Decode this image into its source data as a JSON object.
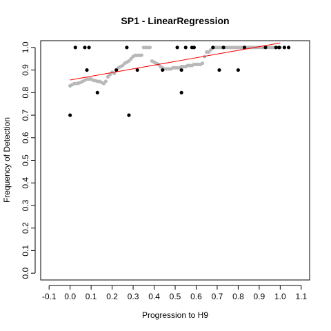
{
  "chart_data": {
    "type": "scatter",
    "title": "SP1 - LinearRegression",
    "xlabel": "Progression to H9",
    "ylabel": "Frequency of Detection",
    "xlim": [
      -0.14,
      1.14
    ],
    "ylim": [
      -0.03,
      1.03
    ],
    "x_ticks": [
      "-0.1",
      "0.0",
      "0.1",
      "0.2",
      "0.3",
      "0.4",
      "0.5",
      "0.6",
      "0.7",
      "0.8",
      "0.9",
      "1.0",
      "1.1"
    ],
    "x_tick_values": [
      -0.1,
      0.0,
      0.1,
      0.2,
      0.3,
      0.4,
      0.5,
      0.6,
      0.7,
      0.8,
      0.9,
      1.0,
      1.1
    ],
    "y_ticks": [
      "0.0",
      "0.1",
      "0.2",
      "0.3",
      "0.4",
      "0.5",
      "0.6",
      "0.7",
      "0.8",
      "0.9",
      "1.0"
    ],
    "y_tick_values": [
      0.0,
      0.1,
      0.2,
      0.3,
      0.4,
      0.5,
      0.6,
      0.7,
      0.8,
      0.9,
      1.0
    ],
    "series": [
      {
        "color": "#000000",
        "points": [
          [
            0.0,
            0.7
          ],
          [
            0.025,
            1.0
          ],
          [
            0.07,
            1.0
          ],
          [
            0.09,
            1.0
          ],
          [
            0.08,
            0.9
          ],
          [
            0.13,
            0.8
          ],
          [
            0.22,
            0.9
          ],
          [
            0.27,
            1.0
          ],
          [
            0.28,
            0.7
          ],
          [
            0.32,
            0.9
          ],
          [
            0.44,
            0.9
          ],
          [
            0.51,
            1.0
          ],
          [
            0.53,
            0.8
          ],
          [
            0.53,
            0.9
          ],
          [
            0.55,
            1.0
          ],
          [
            0.58,
            1.0
          ],
          [
            0.59,
            1.0
          ],
          [
            0.68,
            1.0
          ],
          [
            0.71,
            0.9
          ],
          [
            0.73,
            1.0
          ],
          [
            0.8,
            0.9
          ],
          [
            0.83,
            1.0
          ],
          [
            0.93,
            1.0
          ],
          [
            0.98,
            1.0
          ],
          [
            0.995,
            1.0
          ],
          [
            1.02,
            1.0
          ],
          [
            1.04,
            1.0
          ]
        ]
      },
      {
        "color": "#b8b8b8",
        "points": [
          [
            0.0,
            0.83
          ],
          [
            0.01,
            0.835
          ],
          [
            0.02,
            0.84
          ],
          [
            0.03,
            0.84
          ],
          [
            0.04,
            0.842
          ],
          [
            0.05,
            0.845
          ],
          [
            0.06,
            0.85
          ],
          [
            0.07,
            0.855
          ],
          [
            0.08,
            0.86
          ],
          [
            0.09,
            0.86
          ],
          [
            0.1,
            0.86
          ],
          [
            0.11,
            0.855
          ],
          [
            0.12,
            0.853
          ],
          [
            0.13,
            0.85
          ],
          [
            0.14,
            0.85
          ],
          [
            0.15,
            0.845
          ],
          [
            0.16,
            0.84
          ],
          [
            0.17,
            0.85
          ],
          [
            0.18,
            0.87
          ],
          [
            0.19,
            0.88
          ],
          [
            0.2,
            0.89
          ],
          [
            0.21,
            0.885
          ],
          [
            0.22,
            0.9
          ],
          [
            0.23,
            0.91
          ],
          [
            0.24,
            0.915
          ],
          [
            0.25,
            0.92
          ],
          [
            0.26,
            0.93
          ],
          [
            0.27,
            0.935
          ],
          [
            0.28,
            0.94
          ],
          [
            0.29,
            0.95
          ],
          [
            0.3,
            0.96
          ],
          [
            0.31,
            0.965
          ],
          [
            0.32,
            0.965
          ],
          [
            0.33,
            0.965
          ],
          [
            0.34,
            0.966
          ],
          [
            0.35,
            1.0
          ],
          [
            0.36,
            1.0
          ],
          [
            0.37,
            1.0
          ],
          [
            0.38,
            1.0
          ],
          [
            0.39,
            0.94
          ],
          [
            0.4,
            0.935
          ],
          [
            0.41,
            0.93
          ],
          [
            0.42,
            0.925
          ],
          [
            0.43,
            0.915
          ],
          [
            0.44,
            0.91
          ],
          [
            0.45,
            0.905
          ],
          [
            0.46,
            0.905
          ],
          [
            0.47,
            0.905
          ],
          [
            0.48,
            0.905
          ],
          [
            0.49,
            0.91
          ],
          [
            0.5,
            0.91
          ],
          [
            0.51,
            0.91
          ],
          [
            0.52,
            0.91
          ],
          [
            0.53,
            0.915
          ],
          [
            0.54,
            0.915
          ],
          [
            0.55,
            0.915
          ],
          [
            0.56,
            0.92
          ],
          [
            0.57,
            0.92
          ],
          [
            0.58,
            0.92
          ],
          [
            0.59,
            0.925
          ],
          [
            0.6,
            0.925
          ],
          [
            0.61,
            0.925
          ],
          [
            0.62,
            0.925
          ],
          [
            0.63,
            0.93
          ],
          [
            0.64,
            0.96
          ],
          [
            0.65,
            0.98
          ],
          [
            0.66,
            0.98
          ],
          [
            0.67,
            0.99
          ],
          [
            0.68,
            1.0
          ],
          [
            0.69,
            1.0
          ],
          [
            0.7,
            1.0
          ],
          [
            0.71,
            1.0
          ],
          [
            0.72,
            1.0
          ],
          [
            0.73,
            1.0
          ],
          [
            0.74,
            1.0
          ],
          [
            0.75,
            1.0
          ],
          [
            0.76,
            1.0
          ],
          [
            0.77,
            1.0
          ],
          [
            0.78,
            1.0
          ],
          [
            0.79,
            1.0
          ],
          [
            0.8,
            1.0
          ],
          [
            0.81,
            1.0
          ],
          [
            0.82,
            1.0
          ],
          [
            0.83,
            1.0
          ],
          [
            0.84,
            1.0
          ],
          [
            0.85,
            1.0
          ],
          [
            0.86,
            1.0
          ],
          [
            0.87,
            1.0
          ],
          [
            0.88,
            1.0
          ],
          [
            0.89,
            1.0
          ],
          [
            0.9,
            1.0
          ],
          [
            0.91,
            1.0
          ],
          [
            0.92,
            1.0
          ],
          [
            0.93,
            1.0
          ],
          [
            0.94,
            1.0
          ],
          [
            0.95,
            1.0
          ],
          [
            0.96,
            1.0
          ],
          [
            0.97,
            1.0
          ],
          [
            0.98,
            1.0
          ],
          [
            0.99,
            1.0
          ],
          [
            1.0,
            1.0
          ]
        ]
      }
    ],
    "regression_line": {
      "color": "#ff0000",
      "x": [
        0.0,
        1.0
      ],
      "y": [
        0.856,
        1.02
      ]
    },
    "grid": false,
    "legend": "none"
  }
}
